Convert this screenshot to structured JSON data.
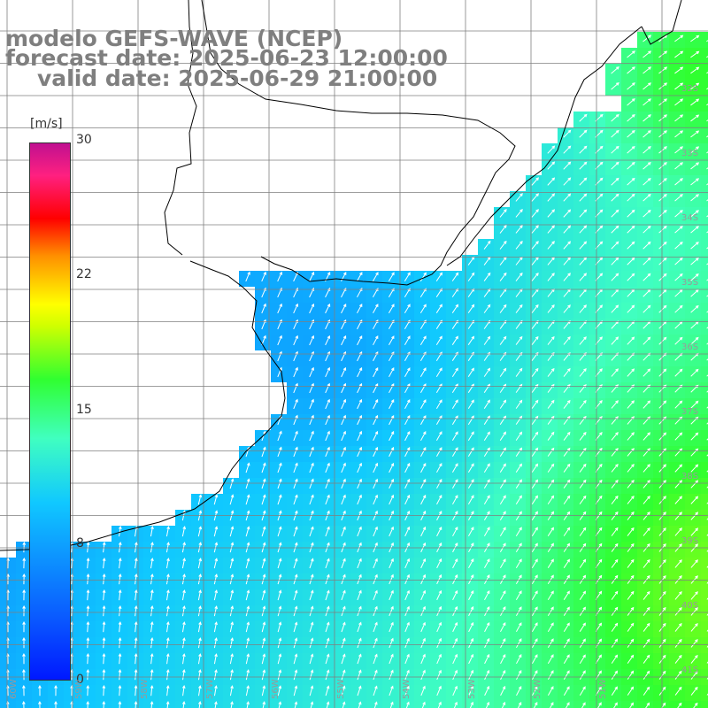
{
  "title": {
    "line1": "modelo GEFS-WAVE (NCEP)",
    "line2": "forecast date: 2025-06-23 12:00:00",
    "line3": "valid date: 2025-06-29 21:00:00"
  },
  "colorbar": {
    "unit": "[m/s]",
    "ticks": [
      "30",
      "22",
      "15",
      "8",
      "0"
    ],
    "min": 0,
    "max": 30,
    "stops": [
      "#0018ff",
      "#0a5cff",
      "#10c8ff",
      "#40ffc0",
      "#30ff30",
      "#d0ff00",
      "#ffff00",
      "#ff9000",
      "#ff0000",
      "#ff2080",
      "#c01090"
    ]
  },
  "lat_labels": [
    "32S",
    "33S",
    "34S",
    "35S",
    "36S",
    "37S",
    "38S",
    "39S",
    "40S",
    "41S"
  ],
  "lon_labels": [
    "60W",
    "59W",
    "58W",
    "57W",
    "56W",
    "55W",
    "54W",
    "53W",
    "52W",
    "51W"
  ],
  "colors": {
    "land": "#ffffff",
    "grid": "#7f7f7f",
    "coast": "#000000",
    "arrow": "#ffffff"
  }
}
